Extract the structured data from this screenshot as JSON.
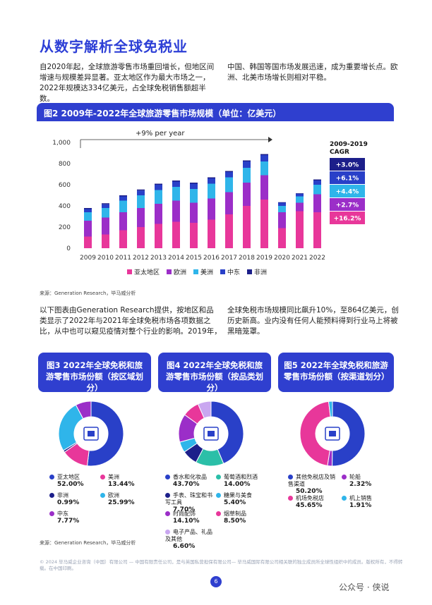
{
  "title": "从数字解析全球免税业",
  "intro_left": [
    "自2020年起，全球旅游零售市场重回增长，但地区间",
    "增速与规模差异显著。亚太地区作为最大市场之一，",
    "2022年规模达334亿美元，占全球免税销售额超半数。"
  ],
  "intro_right": [
    "中国、韩国等国市场发展迅速，成为重要增长点。欧",
    "洲、北美市场增长则相对平稳。"
  ],
  "fig2_title": "图2 2009年-2022年全球旅游零售市场规模（单位：亿美元）",
  "chart_data": {
    "type": "bar",
    "stacked": true,
    "categories": [
      "2009",
      "2010",
      "2011",
      "2012",
      "2013",
      "2014",
      "2015",
      "2016",
      "2017",
      "2018",
      "2019",
      "2020",
      "2021",
      "2022"
    ],
    "series": [
      {
        "name": "亚太地区",
        "color": "#e8379a",
        "values": [
          110,
          130,
          170,
          200,
          230,
          250,
          240,
          270,
          320,
          400,
          460,
          190,
          350,
          340
        ]
      },
      {
        "name": "欧洲",
        "color": "#9b2ec8",
        "values": [
          150,
          160,
          170,
          180,
          190,
          200,
          190,
          200,
          210,
          220,
          230,
          150,
          80,
          170
        ]
      },
      {
        "name": "美洲",
        "color": "#2fb5ea",
        "values": [
          80,
          90,
          110,
          120,
          130,
          130,
          130,
          140,
          140,
          140,
          130,
          60,
          60,
          90
        ]
      },
      {
        "name": "中东",
        "color": "#2940c8",
        "values": [
          30,
          35,
          40,
          45,
          50,
          50,
          50,
          50,
          50,
          60,
          60,
          30,
          25,
          40
        ]
      },
      {
        "name": "非洲",
        "color": "#1c1f8a",
        "values": [
          10,
          10,
          10,
          10,
          10,
          10,
          10,
          10,
          10,
          10,
          10,
          5,
          5,
          10
        ]
      }
    ],
    "yticks": [
      "0",
      "200",
      "400",
      "600",
      "800",
      "1,000"
    ],
    "ylim": [
      0,
      1000
    ],
    "annotation": "+9% per year",
    "cagr_title": "2009-2019 CAGR",
    "cagr": [
      {
        "label": "+3.0%",
        "color": "#1c1f8a"
      },
      {
        "label": "+6.1%",
        "color": "#2940c8"
      },
      {
        "label": "+4.4%",
        "color": "#2fb5ea"
      },
      {
        "label": "+2.7%",
        "color": "#9b2ec8"
      },
      {
        "label": "+16.2%",
        "color": "#e8379a"
      }
    ]
  },
  "source1": "来源：Generation Research，毕马威分析",
  "mid_left": [
    "以下图表由Generation Research提供，按地区和品",
    "类显示了2022年与2021年全球免税市场各项数据之",
    "比，从中也可以窥见疫情对整个行业的影响。2019年，"
  ],
  "mid_right": [
    "全球免税市场规模同比飙升10%，至864亿美元，创",
    "历史新高。业内没有任何人能预料得到行业马上将被",
    "黑暗笼罩。"
  ],
  "fig3": {
    "title": "图3 2022年全球免税和旅游零售市场份额（按区域划分）",
    "slices": [
      {
        "name": "亚太地区",
        "value": "52.00%",
        "pct": 52.0,
        "color": "#2940c8"
      },
      {
        "name": "美洲",
        "value": "13.44%",
        "pct": 13.44,
        "color": "#e8379a"
      },
      {
        "name": "非洲",
        "value": "0.99%",
        "pct": 0.99,
        "color": "#1c1f8a"
      },
      {
        "name": "欧洲",
        "value": "25.99%",
        "pct": 25.99,
        "color": "#2fb5ea"
      },
      {
        "name": "中东",
        "value": "7.77%",
        "pct": 7.77,
        "color": "#9b2ec8"
      }
    ]
  },
  "fig4": {
    "title": "图4 2022年全球免税和旅游零售市场份额（按品类划分）",
    "slices": [
      {
        "name": "香水和化妆品",
        "value": "43.70%",
        "pct": 43.7,
        "color": "#2940c8"
      },
      {
        "name": "葡萄酒和烈酒",
        "value": "14.00%",
        "pct": 14.0,
        "color": "#2bbfa8"
      },
      {
        "name": "手表、珠宝和书写工具",
        "value": "7.70%",
        "pct": 7.7,
        "color": "#1c1f8a"
      },
      {
        "name": "糖果与美食",
        "value": "5.40%",
        "pct": 5.4,
        "color": "#2fb5ea"
      },
      {
        "name": "时尚配饰",
        "value": "14.10%",
        "pct": 14.1,
        "color": "#9b2ec8"
      },
      {
        "name": "烟草制品",
        "value": "8.50%",
        "pct": 8.5,
        "color": "#e8379a"
      },
      {
        "name": "电子产品、礼品及其他",
        "value": "6.60%",
        "pct": 6.6,
        "color": "#c9a7f0"
      }
    ]
  },
  "fig5": {
    "title": "图5 2022年全球免税和旅游零售市场份额（按渠道划分）",
    "slices": [
      {
        "name": "其他免税店及销售渠道",
        "value": "50.20%",
        "pct": 50.2,
        "color": "#2940c8"
      },
      {
        "name": "轮船",
        "value": "2.32%",
        "pct": 2.32,
        "color": "#9b2ec8"
      },
      {
        "name": "机场免税店",
        "value": "45.65%",
        "pct": 45.65,
        "color": "#e8379a"
      },
      {
        "name": "机上销售",
        "value": "1.91%",
        "pct": 1.91,
        "color": "#2fb5ea"
      }
    ]
  },
  "source2": "来源：Generation Research，毕马威分析",
  "footer": "© 2024 毕马威企业咨询（中国）有限公司 — 中国有限责任公司，是与英国私营担保有限公司— 毕马威国际有限公司相关联的独立成员所全球性组织中的成员。版权所有，不得转载。在中国印刷。",
  "page": "6",
  "watermark": "公众号 · 侠说"
}
